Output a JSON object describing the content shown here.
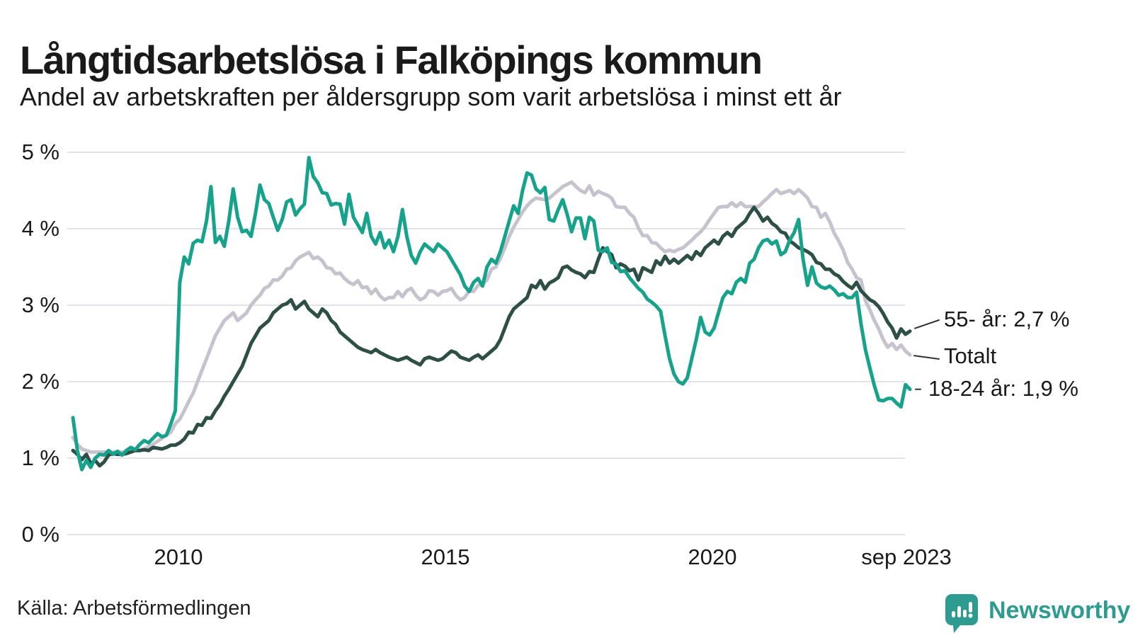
{
  "header": {
    "title": "Långtidsarbetslösa i Falköpings kommun",
    "subtitle": "Andel av arbetskraften per åldersgrupp som varit arbetslösa i minst ett år"
  },
  "footer": {
    "source": "Källa: Arbetsförmedlingen",
    "brand": "Newsworthy"
  },
  "colors": {
    "teal": "#17A28B",
    "dark_green": "#2E4F45",
    "light_gray": "#C6C3CE",
    "grid": "#E4E4E8",
    "text": "#1A1A1A",
    "brand_teal": "#2D9B8F",
    "connector": "#333333"
  },
  "chart_data": {
    "type": "line",
    "title": "Långtidsarbetslösa i Falköpings kommun",
    "subtitle": "Andel av arbetskraften per åldersgrupp som varit arbetslösa i minst ett år",
    "x_range": [
      "2008-01",
      "2023-09"
    ],
    "x_frequency": "monthly",
    "x_tick_labels": [
      "2010",
      "2015",
      "2020",
      "sep 2023"
    ],
    "y_tick_labels": [
      "0 %",
      "1 %",
      "2 %",
      "3 %",
      "4 %",
      "5 %"
    ],
    "ylim": [
      0,
      5
    ],
    "grid": "horizontal-only",
    "legend_position": "end-of-line-labels",
    "series": [
      {
        "name": "Totalt",
        "end_label": "Totalt",
        "color": "#C6C3CE",
        "values": [
          1.27,
          1.18,
          1.12,
          1.1,
          1.08,
          1.08,
          1.08,
          1.08,
          1.08,
          1.08,
          1.08,
          1.08,
          1.08,
          1.08,
          1.1,
          1.1,
          1.12,
          1.15,
          1.18,
          1.22,
          1.26,
          1.3,
          1.34,
          1.45,
          1.51,
          1.62,
          1.74,
          1.85,
          2.0,
          2.15,
          2.3,
          2.45,
          2.6,
          2.7,
          2.8,
          2.85,
          2.9,
          2.8,
          2.85,
          2.9,
          3.0,
          3.07,
          3.13,
          3.22,
          3.25,
          3.33,
          3.33,
          3.38,
          3.47,
          3.49,
          3.58,
          3.63,
          3.66,
          3.69,
          3.61,
          3.63,
          3.58,
          3.49,
          3.48,
          3.41,
          3.42,
          3.35,
          3.3,
          3.27,
          3.32,
          3.23,
          3.24,
          3.15,
          3.21,
          3.12,
          3.07,
          3.1,
          3.1,
          3.18,
          3.11,
          3.19,
          3.22,
          3.13,
          3.07,
          3.1,
          3.19,
          3.18,
          3.13,
          3.18,
          3.19,
          3.22,
          3.13,
          3.07,
          3.1,
          3.19,
          3.18,
          3.26,
          3.27,
          3.33,
          3.47,
          3.5,
          3.61,
          3.75,
          3.9,
          4.02,
          4.12,
          4.22,
          4.3,
          4.36,
          4.4,
          4.39,
          4.38,
          4.4,
          4.45,
          4.5,
          4.55,
          4.58,
          4.61,
          4.55,
          4.5,
          4.47,
          4.56,
          4.44,
          4.49,
          4.46,
          4.44,
          4.4,
          4.29,
          4.28,
          4.28,
          4.2,
          4.15,
          4.01,
          3.91,
          3.91,
          3.82,
          3.81,
          3.75,
          3.7,
          3.72,
          3.7,
          3.73,
          3.75,
          3.8,
          3.85,
          3.91,
          3.96,
          4.03,
          4.12,
          4.2,
          4.28,
          4.29,
          4.29,
          4.34,
          4.29,
          4.34,
          4.29,
          4.29,
          4.29,
          4.29,
          4.35,
          4.4,
          4.46,
          4.51,
          4.46,
          4.48,
          4.5,
          4.46,
          4.51,
          4.46,
          4.4,
          4.29,
          4.28,
          4.15,
          4.2,
          4.09,
          3.94,
          3.84,
          3.72,
          3.56,
          3.47,
          3.36,
          3.33,
          3.06,
          2.94,
          2.8,
          2.69,
          2.55,
          2.45,
          2.5,
          2.42,
          2.48,
          2.4,
          2.35
        ]
      },
      {
        "name": "55- år",
        "end_label": "55- år: 2,7 %",
        "color": "#2E4F45",
        "values": [
          1.1,
          1.05,
          0.98,
          1.05,
          0.93,
          0.97,
          0.9,
          0.95,
          1.04,
          1.06,
          1.05,
          1.05,
          1.06,
          1.08,
          1.1,
          1.1,
          1.11,
          1.1,
          1.14,
          1.13,
          1.12,
          1.14,
          1.17,
          1.17,
          1.2,
          1.25,
          1.34,
          1.33,
          1.44,
          1.43,
          1.53,
          1.52,
          1.62,
          1.7,
          1.81,
          1.9,
          2.0,
          2.1,
          2.2,
          2.35,
          2.5,
          2.6,
          2.7,
          2.75,
          2.8,
          2.9,
          2.95,
          3.0,
          3.02,
          3.07,
          2.95,
          3.0,
          3.05,
          2.95,
          2.9,
          2.85,
          2.95,
          2.9,
          2.8,
          2.75,
          2.65,
          2.6,
          2.55,
          2.5,
          2.45,
          2.42,
          2.4,
          2.38,
          2.42,
          2.38,
          2.35,
          2.32,
          2.3,
          2.28,
          2.3,
          2.32,
          2.28,
          2.25,
          2.22,
          2.3,
          2.32,
          2.3,
          2.28,
          2.3,
          2.35,
          2.4,
          2.38,
          2.32,
          2.3,
          2.28,
          2.32,
          2.35,
          2.3,
          2.35,
          2.4,
          2.45,
          2.55,
          2.7,
          2.85,
          2.95,
          3.0,
          3.05,
          3.1,
          3.26,
          3.23,
          3.32,
          3.21,
          3.29,
          3.32,
          3.36,
          3.49,
          3.51,
          3.46,
          3.43,
          3.41,
          3.36,
          3.44,
          3.43,
          3.6,
          3.75,
          3.7,
          3.66,
          3.49,
          3.54,
          3.51,
          3.45,
          3.47,
          3.33,
          3.49,
          3.46,
          3.43,
          3.58,
          3.53,
          3.64,
          3.55,
          3.6,
          3.55,
          3.6,
          3.65,
          3.6,
          3.7,
          3.65,
          3.75,
          3.8,
          3.85,
          3.8,
          3.9,
          3.95,
          3.9,
          4.0,
          4.05,
          4.1,
          4.2,
          4.28,
          4.2,
          4.1,
          4.15,
          4.07,
          4.03,
          3.96,
          3.94,
          3.84,
          3.8,
          3.75,
          3.73,
          3.7,
          3.66,
          3.56,
          3.54,
          3.47,
          3.47,
          3.41,
          3.38,
          3.31,
          3.26,
          3.22,
          3.3,
          3.19,
          3.13,
          3.07,
          3.04,
          2.98,
          2.89,
          2.78,
          2.7,
          2.57,
          2.69,
          2.62,
          2.66
        ]
      },
      {
        "name": "18-24 år",
        "end_label": "18-24 år: 1,9 %",
        "color": "#17A28B",
        "values": [
          1.53,
          1.1,
          0.85,
          0.97,
          0.88,
          1.0,
          1.05,
          1.04,
          1.1,
          1.05,
          1.09,
          1.04,
          1.1,
          1.14,
          1.11,
          1.18,
          1.23,
          1.2,
          1.26,
          1.32,
          1.28,
          1.3,
          1.45,
          1.62,
          3.3,
          3.63,
          3.54,
          3.81,
          3.85,
          3.83,
          4.1,
          4.55,
          3.82,
          3.9,
          3.77,
          4.1,
          4.52,
          4.15,
          3.96,
          3.98,
          3.9,
          4.2,
          4.57,
          4.38,
          4.33,
          4.15,
          3.98,
          4.12,
          4.35,
          4.38,
          4.18,
          4.26,
          4.32,
          4.93,
          4.68,
          4.6,
          4.47,
          4.46,
          4.31,
          4.33,
          4.32,
          4.06,
          4.45,
          4.15,
          4.05,
          3.95,
          4.2,
          3.9,
          3.8,
          3.95,
          3.75,
          3.85,
          3.7,
          3.9,
          4.25,
          3.9,
          3.65,
          3.55,
          3.7,
          3.8,
          3.75,
          3.7,
          3.8,
          3.75,
          3.7,
          3.6,
          3.5,
          3.4,
          3.25,
          3.18,
          3.3,
          3.35,
          3.25,
          3.5,
          3.6,
          3.55,
          3.7,
          3.9,
          4.1,
          4.3,
          4.2,
          4.5,
          4.73,
          4.7,
          4.52,
          4.47,
          4.54,
          4.12,
          4.1,
          4.25,
          4.38,
          4.19,
          3.96,
          4.14,
          4.14,
          3.87,
          4.15,
          4.1,
          3.72,
          3.7,
          3.75,
          3.56,
          3.54,
          3.44,
          3.45,
          3.36,
          3.29,
          3.22,
          3.17,
          3.08,
          3.04,
          2.99,
          2.92,
          2.6,
          2.3,
          2.1,
          2.0,
          1.97,
          2.05,
          2.3,
          2.55,
          2.84,
          2.65,
          2.61,
          2.7,
          2.9,
          3.1,
          3.18,
          3.15,
          3.3,
          3.35,
          3.3,
          3.55,
          3.6,
          3.75,
          3.84,
          3.86,
          3.8,
          3.84,
          3.66,
          3.7,
          3.85,
          3.95,
          4.12,
          3.6,
          3.26,
          3.5,
          3.29,
          3.24,
          3.22,
          3.25,
          3.2,
          3.13,
          3.15,
          3.1,
          3.1,
          3.17,
          2.76,
          2.42,
          2.18,
          1.95,
          1.76,
          1.75,
          1.78,
          1.78,
          1.72,
          1.67,
          1.96,
          1.9
        ]
      }
    ]
  }
}
